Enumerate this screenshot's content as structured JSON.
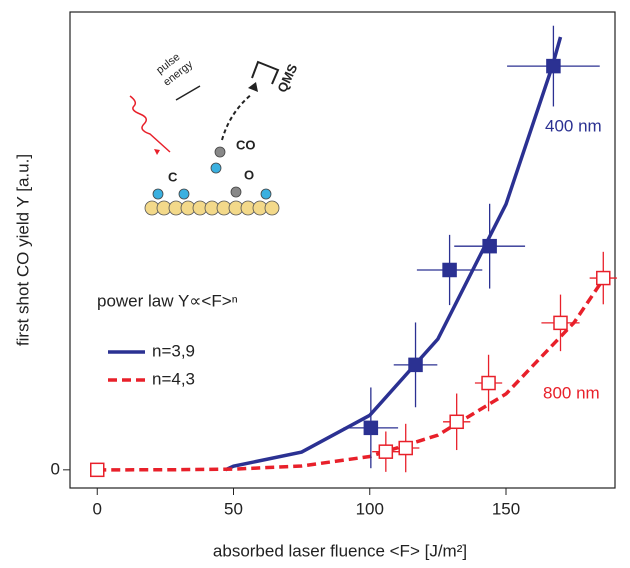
{
  "chart_data": {
    "type": "scatter",
    "xlabel": "absorbed laser fluence <F> [J/m²]",
    "ylabel": "first shot CO yield Y [a.u.]",
    "xlim": [
      -10,
      190
    ],
    "ylim": [
      -0.045,
      1.134
    ],
    "xticks": [
      0,
      50,
      100,
      150
    ],
    "yticks": [
      0
    ],
    "series": [
      {
        "name": "400 nm",
        "color": "#2b3192",
        "filled": true,
        "x": [
          100.4,
          116.8,
          129.3,
          144,
          167.4
        ],
        "values": [
          0.104,
          0.26,
          0.495,
          0.554,
          1.0
        ],
        "xerr": [
          10,
          8,
          12,
          13,
          17
        ],
        "yerr": [
          0.1,
          0.105,
          0.087,
          0.105,
          0.1
        ]
      },
      {
        "name": "800 nm",
        "color": "#e8202a",
        "filled": false,
        "x": [
          0,
          105.9,
          113.2,
          131.9,
          143.6,
          170,
          185.7
        ],
        "values": [
          0,
          0.045,
          0.054,
          0.119,
          0.215,
          0.364,
          0.475
        ],
        "xerr": [
          0,
          5,
          5,
          5,
          5,
          7,
          5
        ],
        "yerr": [
          0,
          0.05,
          0.06,
          0.07,
          0.07,
          0.07,
          0.065
        ]
      }
    ],
    "fits": [
      {
        "name": "n=3,9",
        "color": "#2b3192",
        "dashed": false,
        "x": [
          47,
          50,
          75,
          100,
          125,
          150,
          167,
          170
        ],
        "values": [
          0,
          0.009,
          0.044,
          0.135,
          0.324,
          0.658,
          1.0,
          1.072
        ]
      },
      {
        "name": "n=4,3",
        "color": "#e8202a",
        "dashed": true,
        "x": [
          0,
          25,
          50,
          75,
          100,
          125,
          150,
          175,
          186
        ],
        "values": [
          0,
          0.0001,
          0.0017,
          0.0095,
          0.033,
          0.086,
          0.188,
          0.365,
          0.475
        ]
      }
    ],
    "legend_title": "power law Y∝<F>ⁿ",
    "inset": {
      "pulse": "pulse",
      "energy": "energy",
      "qms": "QMS",
      "co": "CO",
      "c": "C",
      "o": "O"
    }
  }
}
